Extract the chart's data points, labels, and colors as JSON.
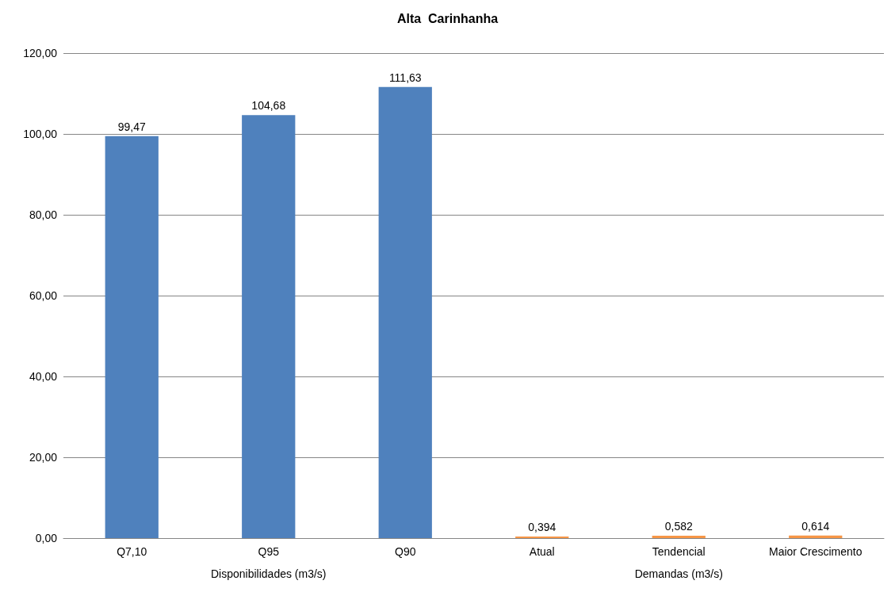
{
  "chart_data": {
    "type": "bar",
    "title": "Alta  Carinhanha",
    "categories": [
      "Q7,10",
      "Q95",
      "Q90",
      "Atual",
      "Tendencial",
      "Maior Crescimento"
    ],
    "values": [
      99.47,
      104.68,
      111.63,
      0.394,
      0.582,
      0.614
    ],
    "colors": [
      "#4f81bd",
      "#4f81bd",
      "#4f81bd",
      "#f79646",
      "#f79646",
      "#f79646"
    ],
    "value_labels": [
      "99,47",
      "104,68",
      "111,63",
      "0,394",
      "0,582",
      "0,614"
    ],
    "ylim": [
      0,
      120
    ],
    "yticks": [
      {
        "value": 0,
        "label": "0,00"
      },
      {
        "value": 20,
        "label": "20,00"
      },
      {
        "value": 40,
        "label": "40,00"
      },
      {
        "value": 60,
        "label": "60,00"
      },
      {
        "value": 80,
        "label": "80,00"
      },
      {
        "value": 100,
        "label": "100,00"
      },
      {
        "value": 120,
        "label": "120,00"
      }
    ],
    "annotations": [
      "Disponibilidades (m3/s)",
      "Demandas (m3/s)"
    ],
    "grid": "y"
  }
}
